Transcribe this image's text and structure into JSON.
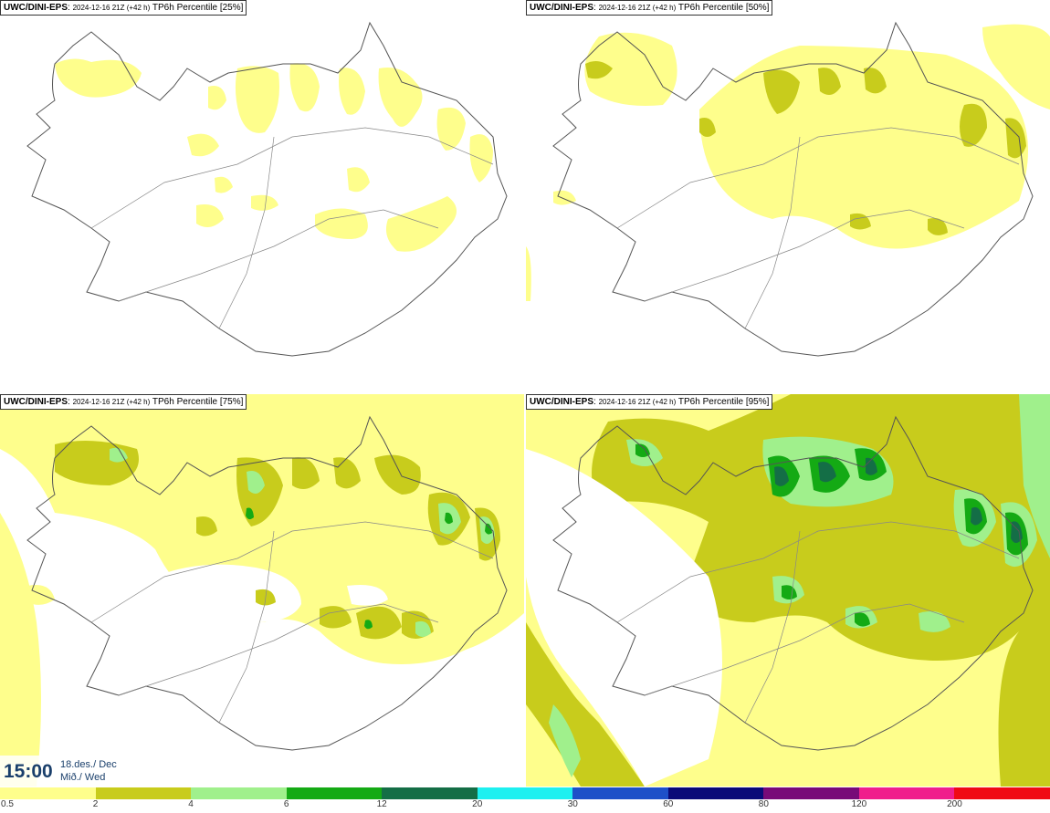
{
  "panels": [
    {
      "model": "UWC/DINI-EPS",
      "run_info": "2024-12-16 21Z (+42 h)",
      "param": "TP6h Percentile [25%]"
    },
    {
      "model": "UWC/DINI-EPS",
      "run_info": "2024-12-16 21Z (+42 h)",
      "param": "TP6h Percentile [50%]"
    },
    {
      "model": "UWC/DINI-EPS",
      "run_info": "2024-12-16 21Z (+42 h)",
      "param": "TP6h Percentile [75%]"
    },
    {
      "model": "UWC/DINI-EPS",
      "run_info": "2024-12-16 21Z (+42 h)",
      "param": "TP6h Percentile [95%]"
    }
  ],
  "valid_time": {
    "time": "15:00",
    "date_line": "18.des./ Dec",
    "day_line": "Mið./ Wed"
  },
  "legend": {
    "colors": [
      "#fefe8c",
      "#c8cc1c",
      "#a0f08c",
      "#14aa14",
      "#146e46",
      "#1ef0f0",
      "#1e50c8",
      "#0a0a78",
      "#780a78",
      "#f01e8c",
      "#f00a14"
    ],
    "labels": [
      "0.5",
      "2",
      "4",
      "6",
      "12",
      "20",
      "30",
      "60",
      "80",
      "120",
      "200"
    ]
  },
  "colors": {
    "light": "#fefe8c",
    "mid": "#c8cc1c",
    "pale_green": "#a0f08c",
    "green": "#14aa14",
    "dark_green": "#146e46",
    "coast": "#666666"
  }
}
